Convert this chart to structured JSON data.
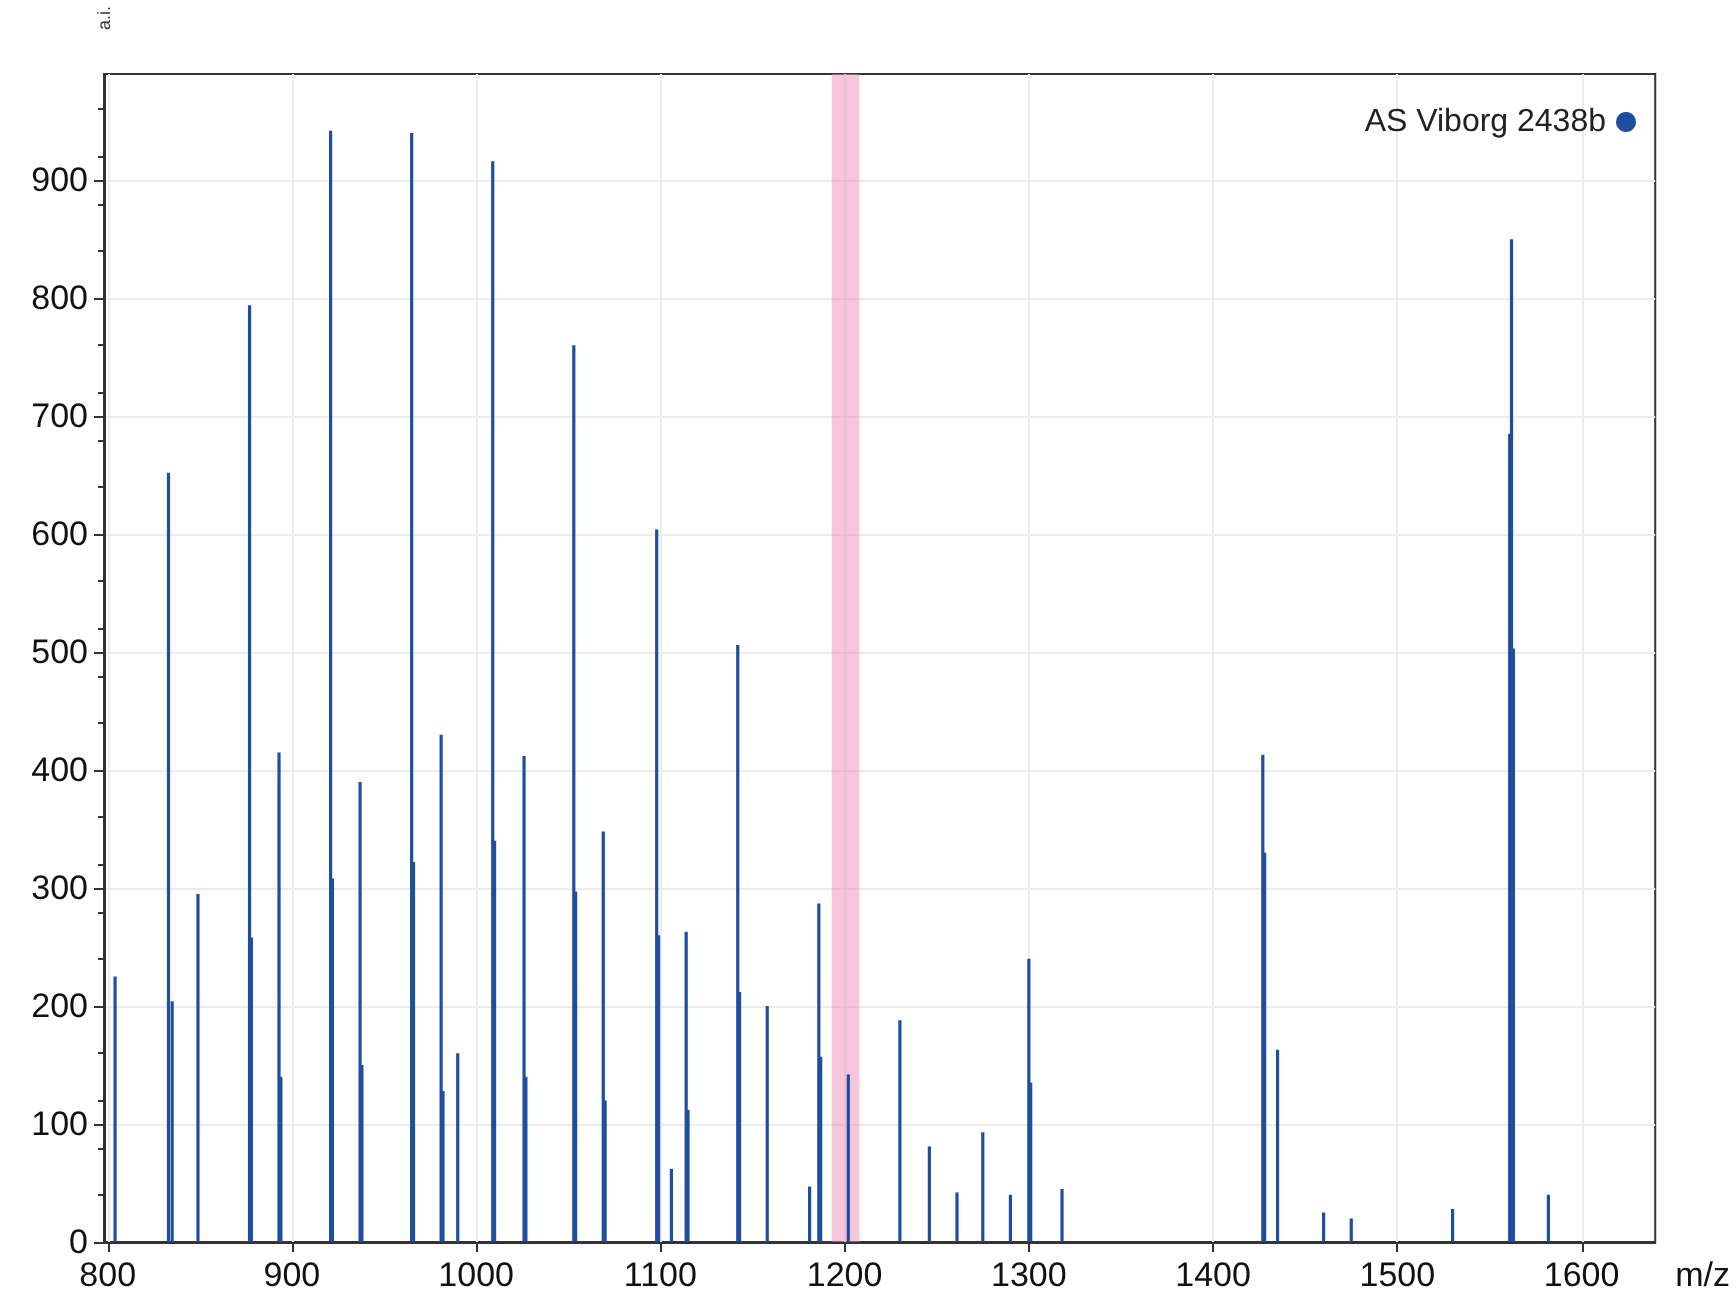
{
  "chart_data": {
    "type": "bar",
    "xlabel": "m/z",
    "ylabel": "a.i.",
    "x": [
      804,
      833,
      835,
      849,
      877,
      878,
      893,
      894,
      921,
      922,
      937,
      938,
      965,
      966,
      981,
      982,
      990,
      1009,
      1010,
      1026,
      1027,
      1053,
      1054,
      1069,
      1070,
      1098,
      1099,
      1106,
      1114,
      1115,
      1142,
      1143,
      1158,
      1181,
      1186,
      1187,
      1202,
      1230,
      1246,
      1261,
      1275,
      1290,
      1300,
      1301,
      1318,
      1427,
      1428,
      1435,
      1460,
      1475,
      1530,
      1561,
      1562,
      1563,
      1582
    ],
    "series": [
      {
        "name": "AS Viborg 2438b",
        "color": "#1f4e9e",
        "values": [
          225,
          652,
          204,
          295,
          794,
          258,
          415,
          140,
          942,
          308,
          390,
          150,
          940,
          322,
          430,
          128,
          160,
          916,
          340,
          412,
          140,
          760,
          297,
          348,
          120,
          604,
          260,
          62,
          263,
          112,
          506,
          212,
          200,
          47,
          287,
          157,
          142,
          188,
          81,
          42,
          93,
          40,
          240,
          135,
          45,
          413,
          330,
          163,
          25,
          20,
          28,
          685,
          850,
          503,
          40
        ]
      }
    ],
    "xlim": [
      798,
      1640
    ],
    "xticks": [
      800,
      900,
      1000,
      1100,
      1200,
      1300,
      1400,
      1500,
      1600
    ],
    "ylim": [
      0,
      990
    ],
    "yticks": [
      0,
      100,
      200,
      300,
      400,
      500,
      600,
      700,
      800,
      900
    ],
    "bands": [
      {
        "axis": "x",
        "from": 1193,
        "to": 1208,
        "color": "#ee8ebb"
      }
    ],
    "grid": true,
    "legend": "top right"
  }
}
